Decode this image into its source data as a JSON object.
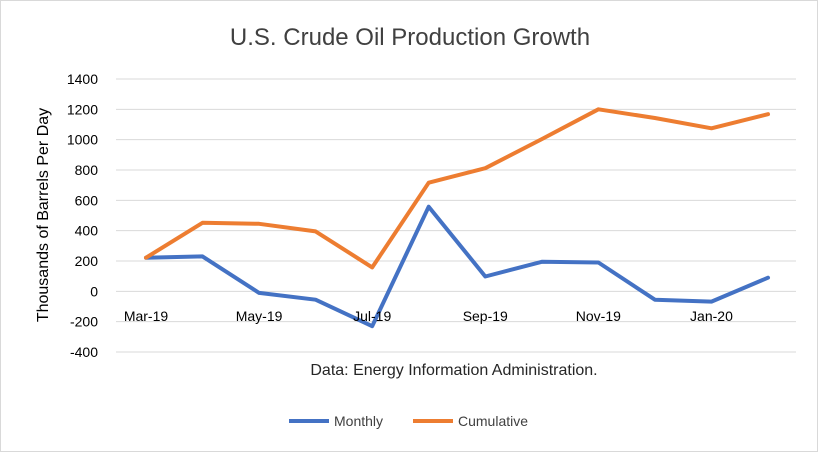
{
  "chart_data": {
    "type": "line",
    "title": "U.S. Crude Oil Production Growth",
    "ylabel": "Thousands of Barrels Per Day",
    "xlabel": "",
    "annotation": "Data: Energy Information Administration.",
    "ylim": [
      -400,
      1400
    ],
    "yticks": [
      -400,
      -200,
      0,
      200,
      400,
      600,
      800,
      1000,
      1200,
      1400
    ],
    "x": [
      "Mar-19",
      "Apr-19",
      "May-19",
      "Jun-19",
      "Jul-19",
      "Aug-19",
      "Sep-19",
      "Oct-19",
      "Nov-19",
      "Dec-19",
      "Jan-20",
      "Feb-20"
    ],
    "xtick_labels": [
      "Mar-19",
      "",
      "May-19",
      "",
      "Jul-19",
      "",
      "Sep-19",
      "",
      "Nov-19",
      "",
      "Jan-20",
      ""
    ],
    "grid": true,
    "legend_position": "bottom",
    "series": [
      {
        "name": "Monthly",
        "color": "#4472C4",
        "values": [
          222,
          230,
          -10,
          -55,
          -230,
          558,
          98,
          195,
          190,
          -55,
          -68,
          90
        ]
      },
      {
        "name": "Cumulative",
        "color": "#ED7D31",
        "values": [
          222,
          452,
          445,
          395,
          158,
          716,
          812,
          1004,
          1200,
          1143,
          1075,
          1168
        ]
      }
    ]
  }
}
